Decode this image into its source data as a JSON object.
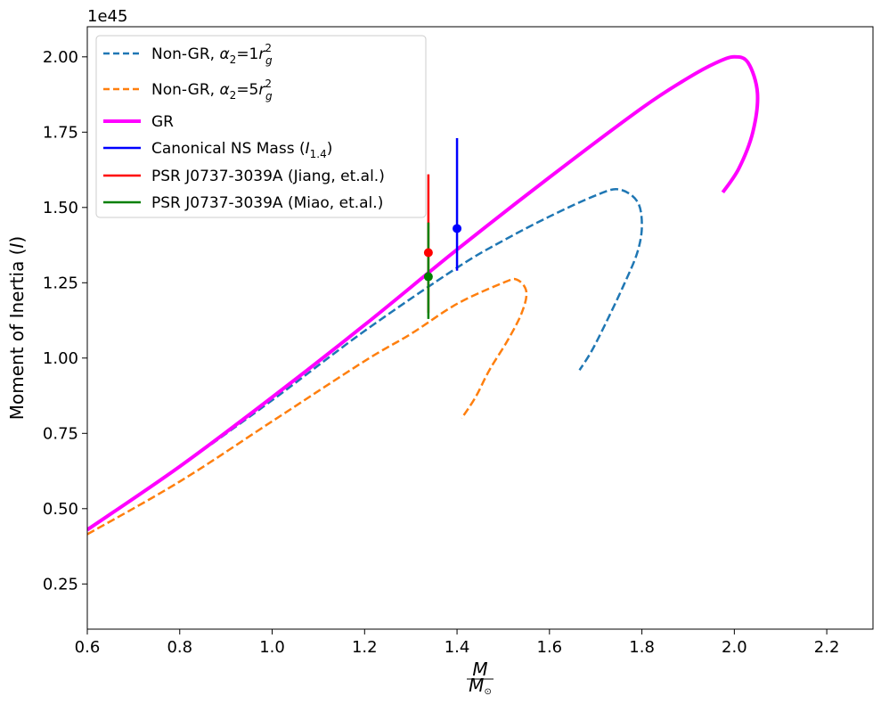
{
  "chart_data": {
    "type": "line",
    "ylabel": "Moment of Inertia (I)",
    "xlabel": "M / M⊙",
    "xlim": [
      0.6,
      2.3
    ],
    "ylim": [
      0.1,
      2.1
    ],
    "y_offset_label": "1e45",
    "xticks": [
      0.6,
      0.8,
      1.0,
      1.2,
      1.4,
      1.6,
      1.8,
      2.0,
      2.2
    ],
    "xtick_labels": [
      "0.6",
      "0.8",
      "1.0",
      "1.2",
      "1.4",
      "1.6",
      "1.8",
      "2.0",
      "2.2"
    ],
    "yticks": [
      0.25,
      0.5,
      0.75,
      1.0,
      1.25,
      1.5,
      1.75,
      2.0
    ],
    "ytick_labels": [
      "0.25",
      "0.50",
      "0.75",
      "1.00",
      "1.25",
      "1.50",
      "1.75",
      "2.00"
    ],
    "legend_position": "top-left",
    "series": [
      {
        "name": "Non-GR, α2=1rg2",
        "label_base": "Non-GR, ",
        "label_alpha": "α",
        "label_alpha_sub": "2",
        "label_eq": "=1",
        "label_r": "r",
        "label_r_sub": "g",
        "label_r_sup": "2",
        "color": "#1f77b4",
        "style": "dashed",
        "points": [
          [
            0.6,
            0.43
          ],
          [
            0.8,
            0.64
          ],
          [
            1.0,
            0.86
          ],
          [
            1.2,
            1.09
          ],
          [
            1.4,
            1.3
          ],
          [
            1.5,
            1.39
          ],
          [
            1.6,
            1.47
          ],
          [
            1.7,
            1.54
          ],
          [
            1.75,
            1.56
          ],
          [
            1.79,
            1.52
          ],
          [
            1.8,
            1.44
          ],
          [
            1.79,
            1.35
          ],
          [
            1.76,
            1.24
          ],
          [
            1.72,
            1.11
          ],
          [
            1.69,
            1.02
          ],
          [
            1.665,
            0.96
          ]
        ]
      },
      {
        "name": "Non-GR, α2=5rg2",
        "label_base": "Non-GR, ",
        "label_alpha": "α",
        "label_alpha_sub": "2",
        "label_eq": "=5",
        "label_r": "r",
        "label_r_sub": "g",
        "label_r_sup": "2",
        "color": "#ff7f0e",
        "style": "dashed",
        "points": [
          [
            0.6,
            0.415
          ],
          [
            0.8,
            0.59
          ],
          [
            1.0,
            0.79
          ],
          [
            1.2,
            0.99
          ],
          [
            1.3,
            1.08
          ],
          [
            1.4,
            1.18
          ],
          [
            1.5,
            1.25
          ],
          [
            1.53,
            1.26
          ],
          [
            1.55,
            1.22
          ],
          [
            1.54,
            1.15
          ],
          [
            1.51,
            1.06
          ],
          [
            1.47,
            0.96
          ],
          [
            1.44,
            0.87
          ],
          [
            1.41,
            0.8
          ]
        ]
      },
      {
        "name": "GR",
        "label_base": "GR",
        "color": "#ff00ff",
        "style": "solid-thick",
        "points": [
          [
            0.6,
            0.43
          ],
          [
            0.8,
            0.64
          ],
          [
            1.0,
            0.87
          ],
          [
            1.2,
            1.11
          ],
          [
            1.4,
            1.36
          ],
          [
            1.6,
            1.6
          ],
          [
            1.8,
            1.83
          ],
          [
            1.9,
            1.93
          ],
          [
            1.96,
            1.98
          ],
          [
            2.0,
            2.0
          ],
          [
            2.03,
            1.98
          ],
          [
            2.05,
            1.88
          ],
          [
            2.04,
            1.75
          ],
          [
            2.01,
            1.63
          ],
          [
            1.975,
            1.55
          ]
        ]
      }
    ],
    "error_bars": [
      {
        "name": "Canonical NS Mass (I1.4)",
        "label_base": "Canonical NS Mass (",
        "label_I": "I",
        "label_I_sub": "1.4",
        "label_close": ")",
        "color": "#0000ff",
        "x": 1.4,
        "y": 1.43,
        "y_low": 1.29,
        "y_high": 1.73
      },
      {
        "name": "PSR J0737-3039A (Jiang, et.al.)",
        "label_base": "PSR J0737-3039A (Jiang, et.al.)",
        "color": "#ff0000",
        "x": 1.338,
        "y": 1.35,
        "y_low": 1.15,
        "y_high": 1.61
      },
      {
        "name": "PSR J0737-3039A (Miao, et.al.)",
        "label_base": "PSR J0737-3039A (Miao, et.al.)",
        "color": "#008000",
        "x": 1.338,
        "y": 1.27,
        "y_low": 1.13,
        "y_high": 1.45
      }
    ]
  }
}
